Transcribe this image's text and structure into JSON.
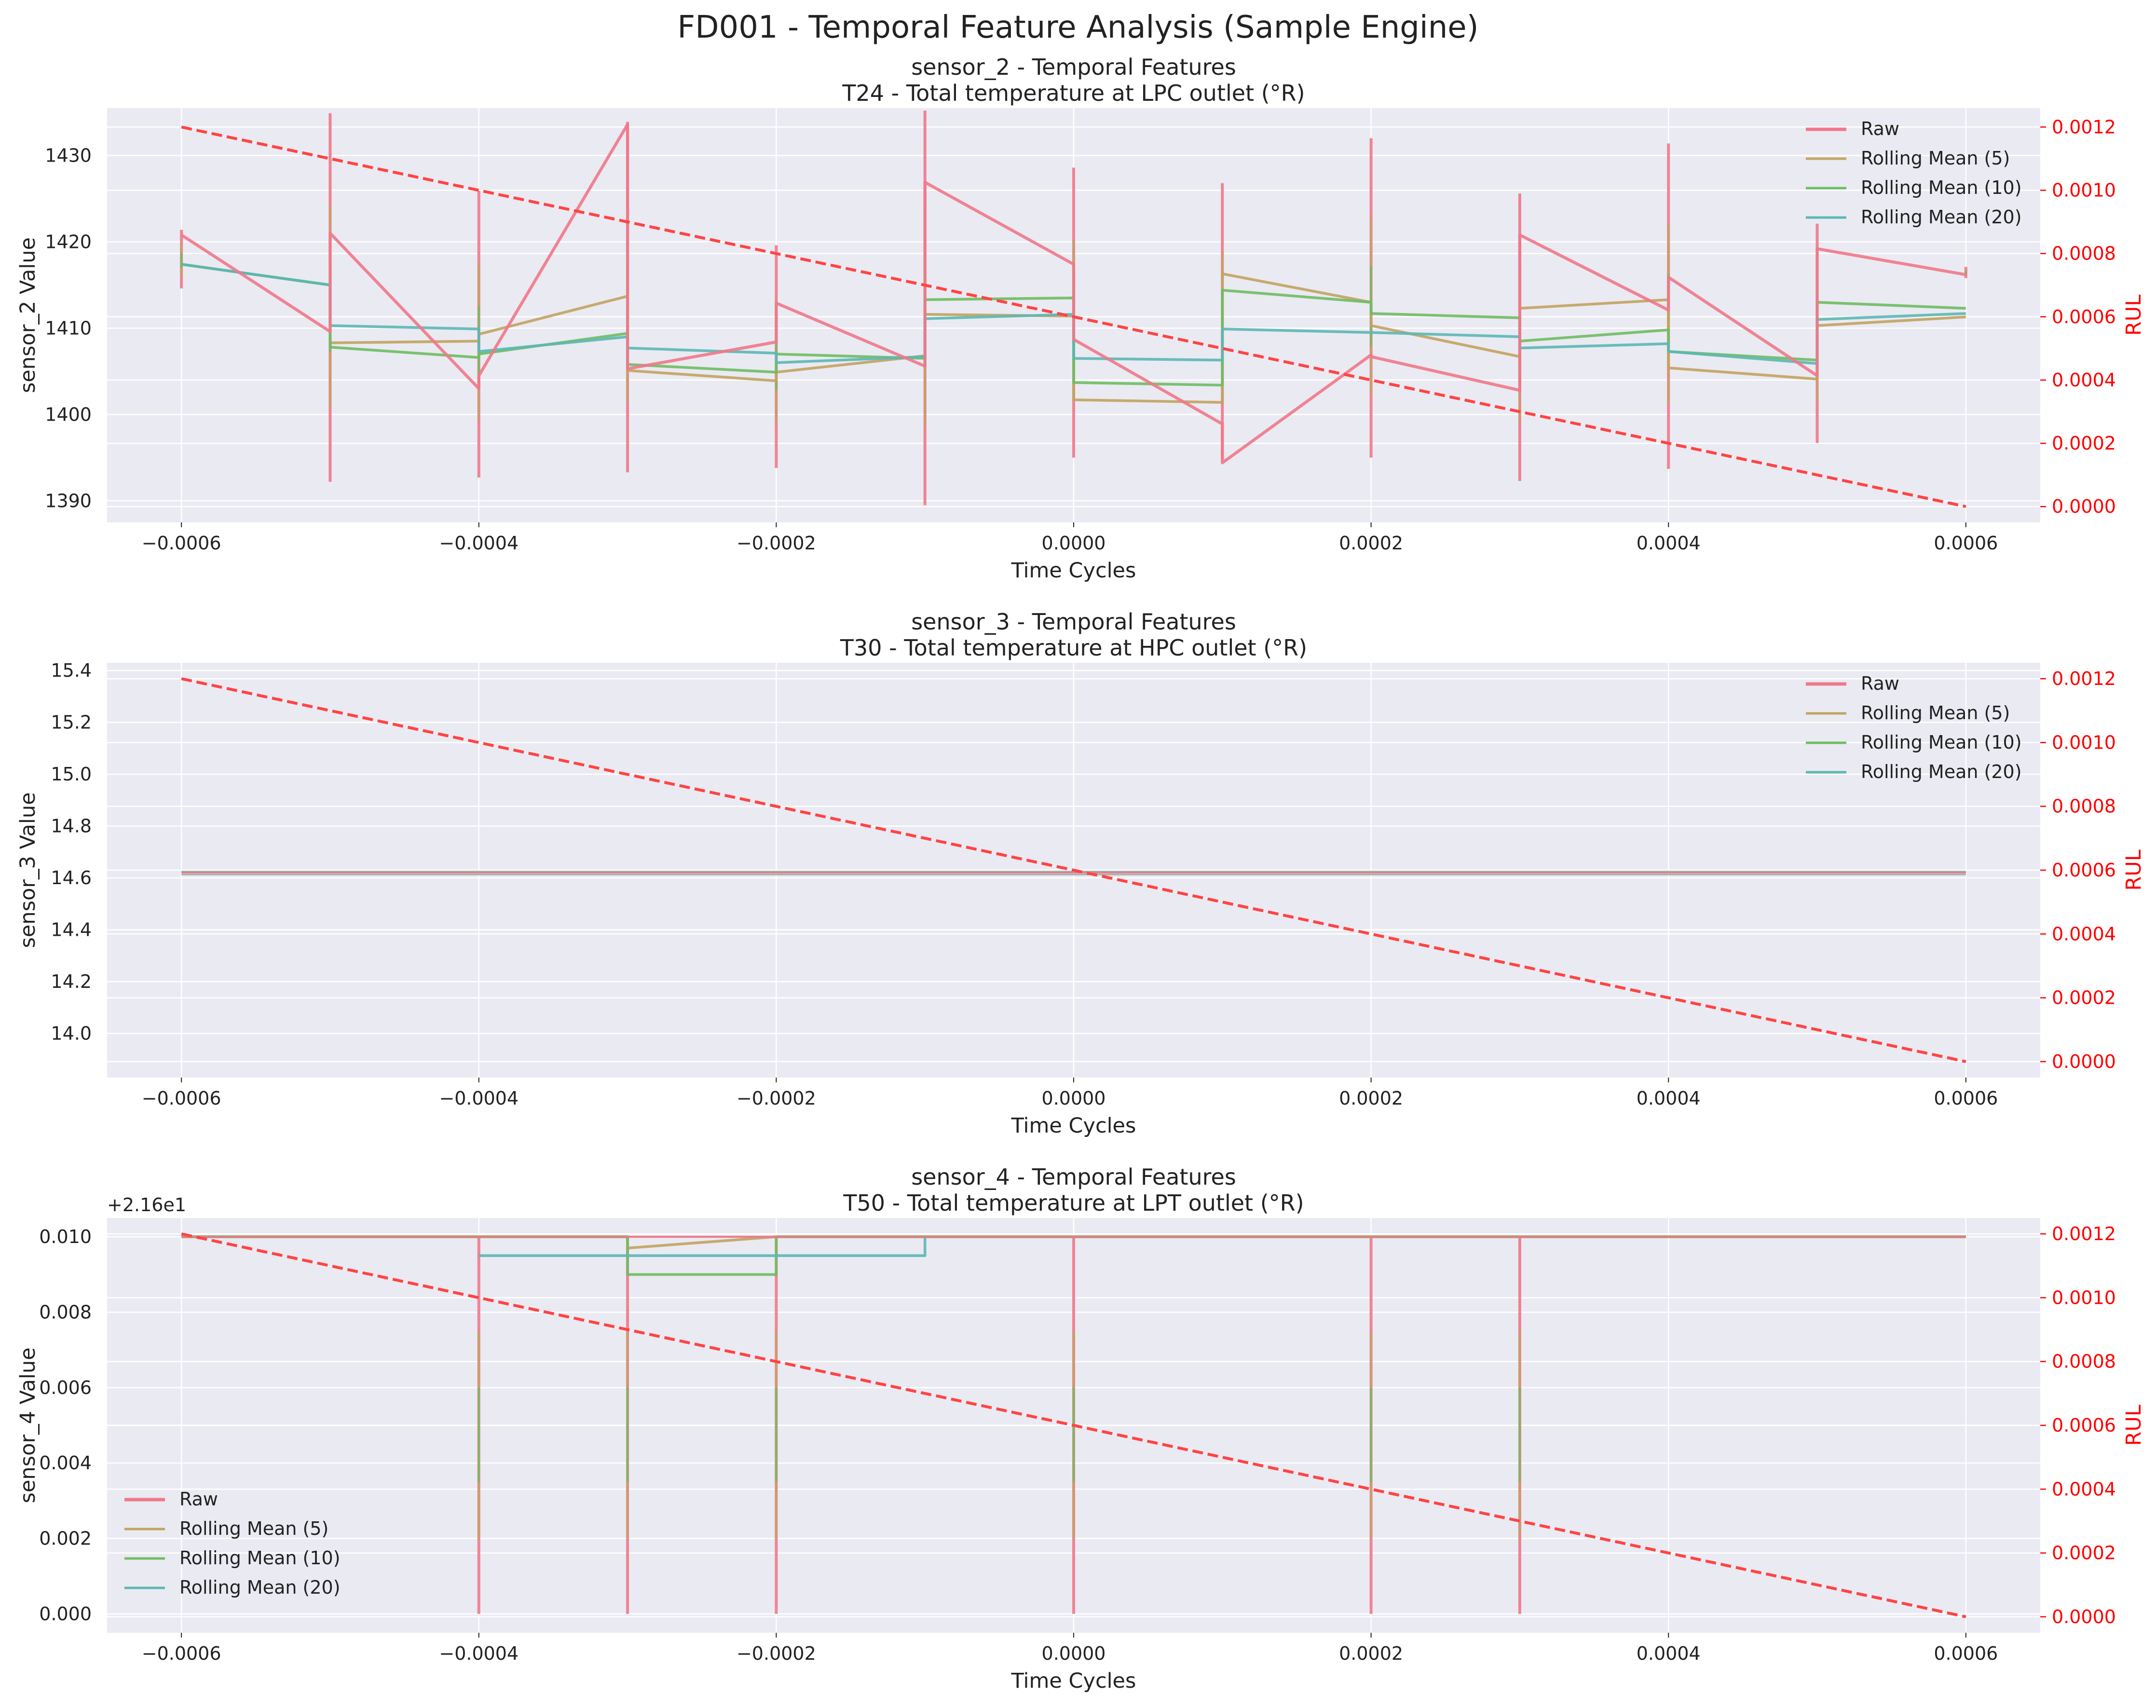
{
  "title": "FD001 - Temporal Feature Analysis (Sample Engine)",
  "colors": {
    "background": "#eaeaf2",
    "grid": "#ffffff",
    "raw": "#f0788a",
    "rolling_5": "#c2a35f",
    "rolling_10": "#6ebd62",
    "rolling_20": "#5bb7b4",
    "rul": "#ff4444",
    "right_axis": "#ff0000"
  },
  "chart_data": [
    {
      "type": "line",
      "title": "sensor_2 - Temporal Features",
      "subtitle": "T24 - Total temperature at LPC outlet (°R)",
      "xlabel": "Time Cycles",
      "ylabel": "sensor_2 Value",
      "ylabel_right": "RUL",
      "xlim": [
        -0.00065,
        0.00065
      ],
      "ylim": [
        1387.5,
        1435.5
      ],
      "ylim_right": [
        -5e-05,
        0.00126
      ],
      "x_ticks": [
        "−0.0006",
        "−0.0004",
        "−0.0002",
        "0.0000",
        "0.0002",
        "0.0004",
        "0.0006"
      ],
      "x_tick_values": [
        -0.0006,
        -0.0004,
        -0.0002,
        0,
        0.0002,
        0.0004,
        0.0006
      ],
      "y_ticks": [
        "1390",
        "1400",
        "1410",
        "1420",
        "1430"
      ],
      "y_tick_values": [
        1390,
        1400,
        1410,
        1420,
        1430
      ],
      "y_ticks_right": [
        "0.0000",
        "0.0002",
        "0.0004",
        "0.0006",
        "0.0008",
        "0.0010",
        "0.0012"
      ],
      "y_tick_values_right": [
        0,
        0.0002,
        0.0004,
        0.0006,
        0.0008,
        0.001,
        0.0012
      ],
      "legend_position": "top-right",
      "grid": true,
      "series": [
        {
          "name": "Raw",
          "color_key": "raw",
          "width": 4.5,
          "values": [
            [
              -0.0006,
              1420.8
            ],
            [
              -0.0005,
              1409.6
            ],
            [
              -0.0005,
              1421.0
            ],
            [
              -0.0004,
              1403.0
            ],
            [
              -0.0004,
              1404.5
            ],
            [
              -0.0003,
              1433.6
            ],
            [
              -0.0003,
              1405.3
            ],
            [
              -0.0002,
              1408.4
            ],
            [
              -0.0002,
              1412.9
            ],
            [
              -0.0001,
              1405.6
            ],
            [
              -0.0001,
              1426.9
            ],
            [
              0,
              1417.4
            ],
            [
              0,
              1408.7
            ],
            [
              0.0001,
              1398.9
            ],
            [
              0.0001,
              1394.4
            ],
            [
              0.0002,
              1406.9
            ],
            [
              0.0002,
              1406.7
            ],
            [
              0.0003,
              1402.8
            ],
            [
              0.0003,
              1420.8
            ],
            [
              0.0004,
              1412.1
            ],
            [
              0.0004,
              1415.9
            ],
            [
              0.0005,
              1404.5
            ],
            [
              0.0005,
              1419.2
            ],
            [
              0.0006,
              1416.2
            ]
          ]
        },
        {
          "name": "Rolling Mean (5)",
          "color_key": "rolling_5",
          "width": 4,
          "values": [
            [
              -0.0006,
              1417.4
            ],
            [
              -0.0005,
              1415.0
            ],
            [
              -0.0005,
              1408.3
            ],
            [
              -0.0004,
              1408.5
            ],
            [
              -0.0004,
              1409.3
            ],
            [
              -0.0003,
              1413.7
            ],
            [
              -0.0003,
              1405.1
            ],
            [
              -0.0002,
              1403.9
            ],
            [
              -0.0002,
              1404.9
            ],
            [
              -0.0001,
              1406.8
            ],
            [
              -0.0001,
              1411.6
            ],
            [
              0,
              1411.4
            ],
            [
              0,
              1401.7
            ],
            [
              0.0001,
              1401.4
            ],
            [
              0.0001,
              1416.3
            ],
            [
              0.0002,
              1413.0
            ],
            [
              0.0002,
              1410.3
            ],
            [
              0.0003,
              1406.7
            ],
            [
              0.0003,
              1412.3
            ],
            [
              0.0004,
              1413.3
            ],
            [
              0.0004,
              1405.4
            ],
            [
              0.0005,
              1404.1
            ],
            [
              0.0005,
              1410.3
            ],
            [
              0.0006,
              1411.3
            ]
          ]
        },
        {
          "name": "Rolling Mean (10)",
          "color_key": "rolling_10",
          "width": 4,
          "values": [
            [
              -0.0006,
              1417.4
            ],
            [
              -0.0005,
              1415.0
            ],
            [
              -0.0005,
              1407.8
            ],
            [
              -0.0004,
              1406.6
            ],
            [
              -0.0004,
              1407.0
            ],
            [
              -0.0003,
              1409.4
            ],
            [
              -0.0003,
              1405.8
            ],
            [
              -0.0002,
              1404.9
            ],
            [
              -0.0002,
              1407.0
            ],
            [
              -0.0001,
              1406.5
            ],
            [
              -0.0001,
              1413.3
            ],
            [
              0,
              1413.5
            ],
            [
              0,
              1403.7
            ],
            [
              0.0001,
              1403.4
            ],
            [
              0.0001,
              1414.4
            ],
            [
              0.0002,
              1413.0
            ],
            [
              0.0002,
              1411.7
            ],
            [
              0.0003,
              1411.2
            ],
            [
              0.0003,
              1408.5
            ],
            [
              0.0004,
              1409.8
            ],
            [
              0.0004,
              1407.3
            ],
            [
              0.0005,
              1406.3
            ],
            [
              0.0005,
              1413.0
            ],
            [
              0.0006,
              1412.3
            ]
          ]
        },
        {
          "name": "Rolling Mean (20)",
          "color_key": "rolling_20",
          "width": 4,
          "values": [
            [
              -0.0006,
              1417.4
            ],
            [
              -0.0005,
              1415.0
            ],
            [
              -0.0005,
              1410.3
            ],
            [
              -0.0004,
              1409.9
            ],
            [
              -0.0004,
              1407.3
            ],
            [
              -0.0003,
              1409.0
            ],
            [
              -0.0003,
              1407.7
            ],
            [
              -0.0002,
              1407.1
            ],
            [
              -0.0002,
              1406.0
            ],
            [
              -0.0001,
              1406.7
            ],
            [
              -0.0001,
              1411.1
            ],
            [
              0,
              1411.6
            ],
            [
              0,
              1406.5
            ],
            [
              0.0001,
              1406.3
            ],
            [
              0.0001,
              1409.9
            ],
            [
              0.0002,
              1409.5
            ],
            [
              0.0002,
              1409.5
            ],
            [
              0.0003,
              1409.0
            ],
            [
              0.0003,
              1407.7
            ],
            [
              0.0004,
              1408.2
            ],
            [
              0.0004,
              1407.3
            ],
            [
              0.0005,
              1405.9
            ],
            [
              0.0005,
              1411.0
            ],
            [
              0.0006,
              1411.7
            ]
          ]
        }
      ],
      "vertical_spikes": [
        {
          "x": -0.0006,
          "lo": 1414.6,
          "hi": 1421.4
        },
        {
          "x": -0.0005,
          "lo": 1392.2,
          "hi": 1434.9
        },
        {
          "x": -0.0004,
          "lo": 1392.7,
          "hi": 1425.9
        },
        {
          "x": -0.0003,
          "lo": 1393.3,
          "hi": 1433.9
        },
        {
          "x": -0.0002,
          "lo": 1393.8,
          "hi": 1419.6
        },
        {
          "x": -0.0001,
          "lo": 1389.5,
          "hi": 1435.2
        },
        {
          "x": 0,
          "lo": 1395.0,
          "hi": 1428.6
        },
        {
          "x": 0.0001,
          "lo": 1394.8,
          "hi": 1426.8
        },
        {
          "x": 0.0002,
          "lo": 1395.0,
          "hi": 1432.0
        },
        {
          "x": 0.0003,
          "lo": 1392.3,
          "hi": 1425.6
        },
        {
          "x": 0.0004,
          "lo": 1393.7,
          "hi": 1431.4
        },
        {
          "x": 0.0005,
          "lo": 1396.7,
          "hi": 1422.1
        },
        {
          "x": 0.0006,
          "lo": 1415.8,
          "hi": 1417.1
        }
      ],
      "rul": {
        "x": [
          -0.0006,
          0.0006
        ],
        "values": [
          0.0012,
          0
        ]
      }
    },
    {
      "type": "line",
      "title": "sensor_3 - Temporal Features",
      "subtitle": "T30 - Total temperature at HPC outlet (°R)",
      "xlabel": "Time Cycles",
      "ylabel": "sensor_3 Value",
      "ylabel_right": "RUL",
      "xlim": [
        -0.00065,
        0.00065
      ],
      "ylim": [
        13.83,
        15.43
      ],
      "ylim_right": [
        -5e-05,
        0.00125
      ],
      "x_ticks": [
        "−0.0006",
        "−0.0004",
        "−0.0002",
        "0.0000",
        "0.0002",
        "0.0004",
        "0.0006"
      ],
      "x_tick_values": [
        -0.0006,
        -0.0004,
        -0.0002,
        0,
        0.0002,
        0.0004,
        0.0006
      ],
      "y_ticks": [
        "14.0",
        "14.2",
        "14.4",
        "14.6",
        "14.8",
        "15.0",
        "15.2",
        "15.4"
      ],
      "y_tick_values": [
        14.0,
        14.2,
        14.4,
        14.6,
        14.8,
        15.0,
        15.2,
        15.4
      ],
      "y_ticks_right": [
        "0.0000",
        "0.0002",
        "0.0004",
        "0.0006",
        "0.0008",
        "0.0010",
        "0.0012"
      ],
      "y_tick_values_right": [
        0,
        0.0002,
        0.0004,
        0.0006,
        0.0008,
        0.001,
        0.0012
      ],
      "legend_position": "top-right",
      "grid": true,
      "series": [
        {
          "name": "Raw",
          "color_key": "raw",
          "width": 2,
          "values": [
            [
              -0.0006,
              14.62
            ],
            [
              0.0006,
              14.62
            ]
          ]
        },
        {
          "name": "Rolling Mean (5)",
          "color_key": "rolling_5",
          "width": 2,
          "values": [
            [
              -0.0006,
              14.62
            ],
            [
              0.0006,
              14.62
            ]
          ]
        },
        {
          "name": "Rolling Mean (10)",
          "color_key": "rolling_10",
          "width": 2,
          "values": [
            [
              -0.0006,
              14.62
            ],
            [
              0.0006,
              14.62
            ]
          ]
        },
        {
          "name": "Rolling Mean (20)",
          "color_key": "rolling_20",
          "width": 2,
          "values": [
            [
              -0.0006,
              14.62
            ],
            [
              0.0006,
              14.62
            ]
          ]
        }
      ],
      "flat_lines": [
        14.625,
        14.613
      ],
      "vertical_spikes": [],
      "rul": {
        "x": [
          -0.0006,
          0.0006
        ],
        "values": [
          0.0012,
          0
        ]
      }
    },
    {
      "type": "line",
      "title": "sensor_4 - Temporal Features",
      "subtitle": "T50 - Total temperature at LPT outlet (°R)",
      "xlabel": "Time Cycles",
      "ylabel": "sensor_4 Value",
      "ylabel_right": "RUL",
      "y_offset_text": "+2.16e1",
      "xlim": [
        -0.00065,
        0.00065
      ],
      "ylim": [
        -0.0005,
        0.0105
      ],
      "ylim_right": [
        -5e-05,
        0.00125
      ],
      "x_ticks": [
        "−0.0006",
        "−0.0004",
        "−0.0002",
        "0.0000",
        "0.0002",
        "0.0004",
        "0.0006"
      ],
      "x_tick_values": [
        -0.0006,
        -0.0004,
        -0.0002,
        0,
        0.0002,
        0.0004,
        0.0006
      ],
      "y_ticks": [
        "0.000",
        "0.002",
        "0.004",
        "0.006",
        "0.008",
        "0.010"
      ],
      "y_tick_values": [
        0,
        0.002,
        0.004,
        0.006,
        0.008,
        0.01
      ],
      "y_ticks_right": [
        "0.0000",
        "0.0002",
        "0.0004",
        "0.0006",
        "0.0008",
        "0.0010",
        "0.0012"
      ],
      "y_tick_values_right": [
        0,
        0.0002,
        0.0004,
        0.0006,
        0.0008,
        0.001,
        0.0012
      ],
      "legend_position": "bottom-left",
      "grid": true,
      "series": [
        {
          "name": "Raw",
          "color_key": "raw",
          "width": 3,
          "values": [
            [
              -0.0006,
              0.01
            ],
            [
              -0.0004,
              0.01
            ],
            [
              -0.0003,
              0.01
            ],
            [
              -0.0002,
              0.01
            ],
            [
              0.0006,
              0.01
            ]
          ]
        },
        {
          "name": "Rolling Mean (5)",
          "color_key": "rolling_5",
          "width": 4,
          "values": [
            [
              -0.0006,
              0.01
            ],
            [
              -0.0004,
              0.01
            ],
            [
              -0.0003,
              0.01
            ],
            [
              -0.0003,
              0.0097
            ],
            [
              -0.0002,
              0.01
            ],
            [
              0.0006,
              0.01
            ]
          ]
        },
        {
          "name": "Rolling Mean (10)",
          "color_key": "rolling_10",
          "width": 4,
          "values": [
            [
              -0.0006,
              0.01
            ],
            [
              -0.0004,
              0.01
            ],
            [
              -0.0003,
              0.01
            ],
            [
              -0.0003,
              0.009
            ],
            [
              -0.0002,
              0.009
            ],
            [
              -0.0002,
              0.01
            ],
            [
              0.0006,
              0.01
            ]
          ]
        },
        {
          "name": "Rolling Mean (20)",
          "color_key": "rolling_20",
          "width": 4,
          "values": [
            [
              -0.0004,
              0.0095
            ],
            [
              -0.0001,
              0.0095
            ],
            [
              -0.0001,
              0.01
            ]
          ]
        }
      ],
      "flat_lines": [
        0.01
      ],
      "vertical_spikes": [
        {
          "x": -0.0004,
          "lo": 0,
          "hi": 0.01
        },
        {
          "x": -0.0003,
          "lo": 0,
          "hi": 0.01
        },
        {
          "x": -0.0002,
          "lo": 0,
          "hi": 0.01
        },
        {
          "x": 0,
          "lo": 0,
          "hi": 0.01
        },
        {
          "x": 0.0002,
          "lo": 0,
          "hi": 0.01
        },
        {
          "x": 0.0003,
          "lo": 0,
          "hi": 0.01
        }
      ],
      "rul": {
        "x": [
          -0.0006,
          0.0006
        ],
        "values": [
          0.0012,
          0
        ]
      }
    }
  ]
}
